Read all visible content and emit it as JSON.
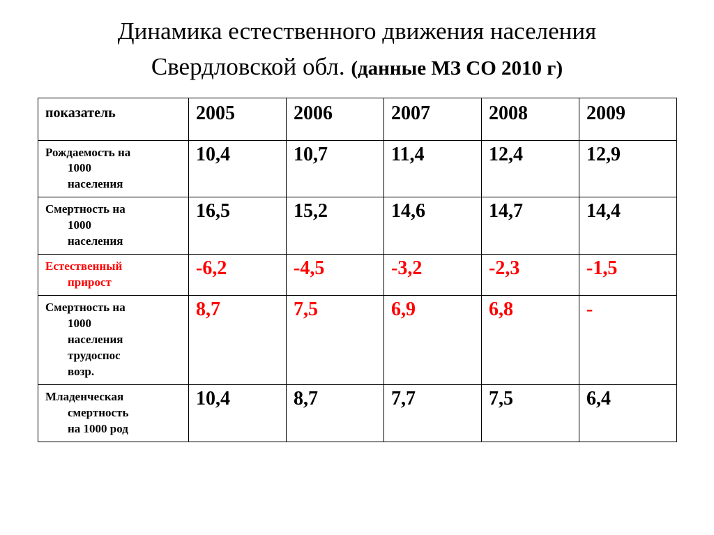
{
  "title_line1": "Динамика естественного движения населения",
  "title_line2_a": "Свердловской обл.",
  "title_line2_b": "(данные МЗ СО 2010 г)",
  "table": {
    "header_label": "показатель",
    "years": [
      "2005",
      "2006",
      "2007",
      "2008",
      "2009"
    ],
    "rows": [
      {
        "label": "Рождаемость на",
        "label_cont": [
          "1000",
          "населения"
        ],
        "label_color": "#000000",
        "value_color": "#000000",
        "values": [
          "10,4",
          "10,7",
          "11,4",
          "12,4",
          "12,9"
        ]
      },
      {
        "label": "Смертность на",
        "label_cont": [
          "1000",
          "населения"
        ],
        "label_color": "#000000",
        "value_color": "#000000",
        "values": [
          "16,5",
          "15,2",
          "14,6",
          "14,7",
          "14,4"
        ]
      },
      {
        "label": "Естественный",
        "label_cont": [
          "прирост"
        ],
        "label_color": "#ff0000",
        "value_color": "#ff0000",
        "values": [
          "-6,2",
          "-4,5",
          "-3,2",
          "-2,3",
          "-1,5"
        ]
      },
      {
        "label": "Смертность на",
        "label_cont": [
          "1000",
          "населения",
          "трудоспос",
          "возр."
        ],
        "label_color": "#000000",
        "value_color": "#ff0000",
        "values": [
          "8,7",
          "7,5",
          "6,9",
          "6,8",
          "-"
        ]
      },
      {
        "label": "Младенческая",
        "label_cont": [
          "смертность",
          "на 1000 род"
        ],
        "label_color": "#000000",
        "value_color": "#000000",
        "values": [
          "10,4",
          "8,7",
          "7,7",
          "7,5",
          "6,4"
        ]
      }
    ]
  },
  "colors": {
    "text": "#000000",
    "highlight": "#ff0000",
    "border": "#000000",
    "background": "#ffffff"
  }
}
